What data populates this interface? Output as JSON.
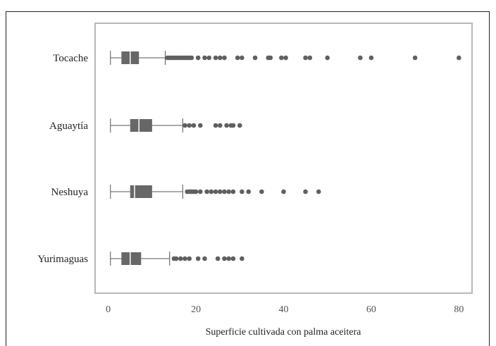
{
  "chart_data": {
    "type": "boxplot",
    "orientation": "horizontal",
    "xlabel": "Superficie cultivada con palma aceitera",
    "xlim": [
      -3,
      83
    ],
    "xticks": [
      0,
      20,
      40,
      60,
      80
    ],
    "grid": false,
    "series": [
      {
        "name": "Tocache",
        "whisker_low": 0.5,
        "q1": 3,
        "median": 5,
        "q3": 7,
        "whisker_high": 13,
        "outliers": [
          13.5,
          14,
          14.5,
          15,
          15.5,
          16,
          16.5,
          17,
          17.5,
          18,
          18.5,
          19,
          20.5,
          22,
          23,
          24.5,
          25.5,
          26.5,
          29.5,
          30.5,
          33.5,
          36.5,
          37,
          39.5,
          40.5,
          45,
          46,
          50,
          57.5,
          60,
          70,
          80
        ]
      },
      {
        "name": "Aguaytía",
        "whisker_low": 0.5,
        "q1": 5,
        "median": 7,
        "q3": 10,
        "whisker_high": 17,
        "outliers": [
          17.5,
          18.5,
          19.5,
          21,
          24.5,
          25.5,
          27,
          28,
          28.5,
          30
        ]
      },
      {
        "name": "Neshuya",
        "whisker_low": 0.5,
        "q1": 5,
        "median": 6,
        "q3": 10,
        "whisker_high": 17,
        "outliers": [
          18,
          18.5,
          19,
          19.5,
          20,
          21,
          22.5,
          23.5,
          24.5,
          25.5,
          26.5,
          27.5,
          28.5,
          30.5,
          32,
          35,
          40,
          45,
          48
        ]
      },
      {
        "name": "Yurimaguas",
        "whisker_low": 0.5,
        "q1": 3,
        "median": 5,
        "q3": 7.5,
        "whisker_high": 14,
        "outliers": [
          15,
          15.5,
          16.5,
          17.5,
          18.5,
          20.5,
          22,
          25,
          26.5,
          27.5,
          28.5,
          30.5
        ]
      }
    ]
  },
  "colors": {
    "box": "#676767",
    "median": "#ffffff",
    "whisker": "#555555",
    "outlier": "#606060",
    "plot_border": "#b8b8b8"
  }
}
